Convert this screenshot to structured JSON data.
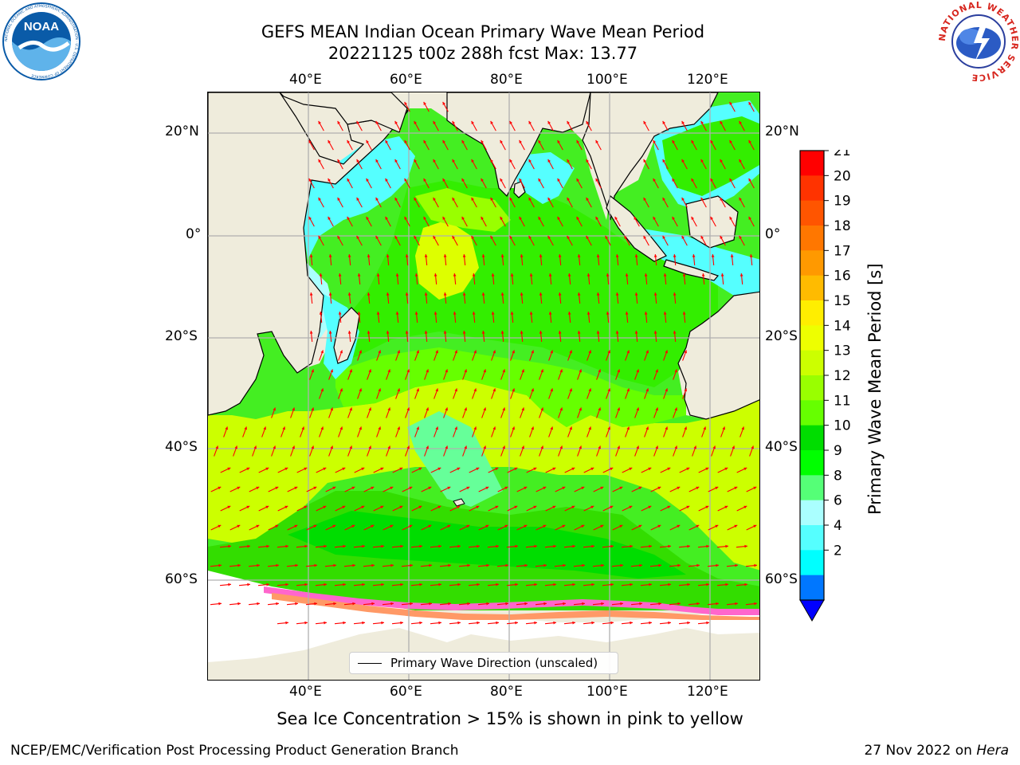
{
  "title": {
    "line1": "GEFS MEAN Indian Ocean Primary Wave Mean Period",
    "line2": "20221125 t00z 288h fcst   Max: 13.77"
  },
  "logos": {
    "left": {
      "text": "NOAA",
      "ring_text": "NATIONAL OCEANIC AND ATMOSPHERIC ADMINISTRATION · U.S. DEPARTMENT OF COMMERCE",
      "color": "#0a5ba8"
    },
    "right": {
      "ring_text": "NATIONAL WEATHER SERVICE",
      "color": "#d7261e"
    }
  },
  "map": {
    "lon_labels": [
      "40°E",
      "60°E",
      "80°E",
      "100°E",
      "120°E"
    ],
    "lat_labels_left": [
      "20°N",
      "0°",
      "20°S",
      "40°S",
      "60°S"
    ],
    "lat_labels_right": [
      "20°N",
      "0°",
      "20°S",
      "40°S",
      "60°S"
    ],
    "land_color": "#efecdc",
    "ice_free_color": "#ffffff",
    "arrow_color": "#ff0000",
    "legend_label": "Primary Wave Direction (unscaled)"
  },
  "colorbar": {
    "title": "Primary Wave Mean Period [s]",
    "ticks": [
      "21",
      "20",
      "19",
      "18",
      "17",
      "16",
      "15",
      "14",
      "13",
      "12",
      "11",
      "10",
      "9",
      "8",
      "6",
      "4",
      "2"
    ],
    "colors": [
      "#ff0000",
      "#ff3300",
      "#ff5500",
      "#ff7700",
      "#ff9900",
      "#ffbb00",
      "#ffee00",
      "#eeff00",
      "#ccff00",
      "#99ff00",
      "#66ff00",
      "#00dd00",
      "#00ff00",
      "#55ff77",
      "#aaffff",
      "#55ffff",
      "#00ffff",
      "#0077ff"
    ],
    "under_color": "#0000ff"
  },
  "note": "Sea Ice Concentration > 15% is shown in pink to yellow",
  "footer": {
    "left": "NCEP/EMC/Verification Post Processing Product Generation Branch",
    "right_date": "27 Nov 2022 on ",
    "right_host": "Hera"
  }
}
